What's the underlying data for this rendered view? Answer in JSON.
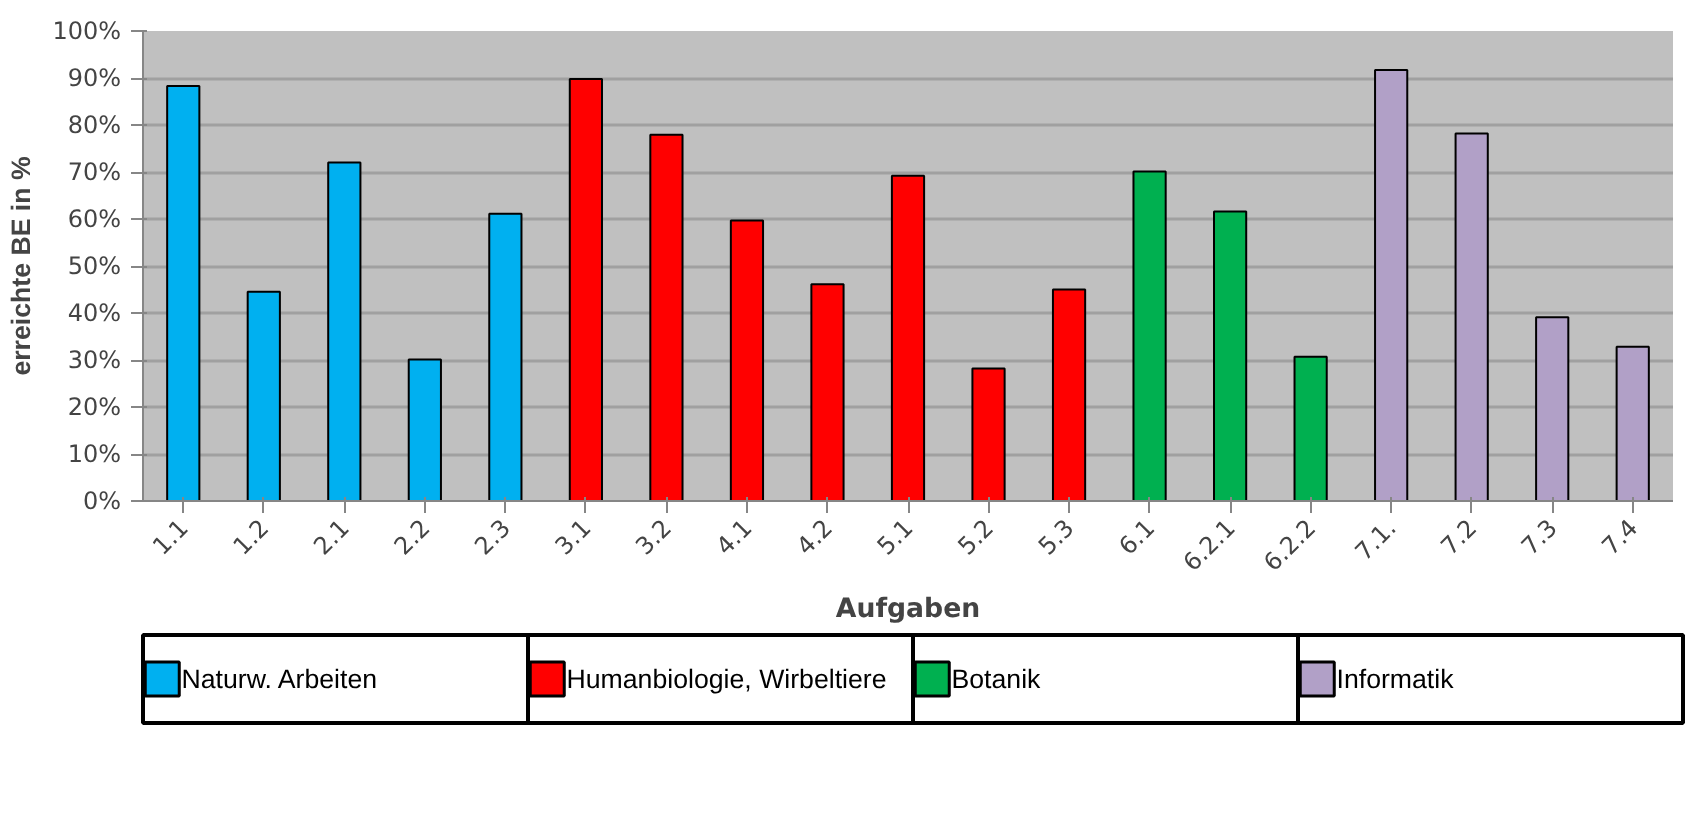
{
  "chart_data": {
    "type": "bar",
    "xlabel": "Aufgaben",
    "ylabel": "erreichte BE in %",
    "categories": [
      "1.1",
      "1.2",
      "2.1",
      "2.2",
      "2.3",
      "3.1",
      "3.2",
      "4.1",
      "4.2",
      "5.1",
      "5.2",
      "5.3",
      "6.1",
      "6.2.1",
      "6.2.2",
      "7.1.",
      "7.2",
      "7.3",
      "7.4"
    ],
    "series": [
      {
        "name": "Naturw. Arbeiten",
        "color": "#00b0f0",
        "values": [
          88.3,
          44.5,
          72.0,
          30.1,
          61.1,
          null,
          null,
          null,
          null,
          null,
          null,
          null,
          null,
          null,
          null,
          null,
          null,
          null,
          null
        ]
      },
      {
        "name": "Humanbiologie, Wirbeltiere",
        "color": "#ff0000",
        "values": [
          null,
          null,
          null,
          null,
          null,
          89.8,
          77.9,
          59.7,
          46.1,
          69.2,
          28.2,
          45.0,
          null,
          null,
          null,
          null,
          null,
          null,
          null
        ]
      },
      {
        "name": "Botanik",
        "color": "#00b050",
        "values": [
          null,
          null,
          null,
          null,
          null,
          null,
          null,
          null,
          null,
          null,
          null,
          null,
          70.1,
          61.6,
          30.7,
          null,
          null,
          null,
          null
        ]
      },
      {
        "name": "Informatik",
        "color": "#b1a0c7",
        "values": [
          null,
          null,
          null,
          null,
          null,
          null,
          null,
          null,
          null,
          null,
          null,
          null,
          null,
          null,
          null,
          91.7,
          78.2,
          39.1,
          32.8
        ]
      }
    ],
    "ylim": [
      0,
      100
    ],
    "yticks": [
      {
        "value": 0,
        "label": "0%"
      },
      {
        "value": 10,
        "label": "10%"
      },
      {
        "value": 20,
        "label": "20%"
      },
      {
        "value": 30,
        "label": "30%"
      },
      {
        "value": 40,
        "label": "40%"
      },
      {
        "value": 50,
        "label": "50%"
      },
      {
        "value": 60,
        "label": "60%"
      },
      {
        "value": 70,
        "label": "70%"
      },
      {
        "value": 80,
        "label": "80%"
      },
      {
        "value": 90,
        "label": "90%"
      },
      {
        "value": 100,
        "label": "100%"
      }
    ],
    "grid": "y",
    "legend": "bottom"
  }
}
